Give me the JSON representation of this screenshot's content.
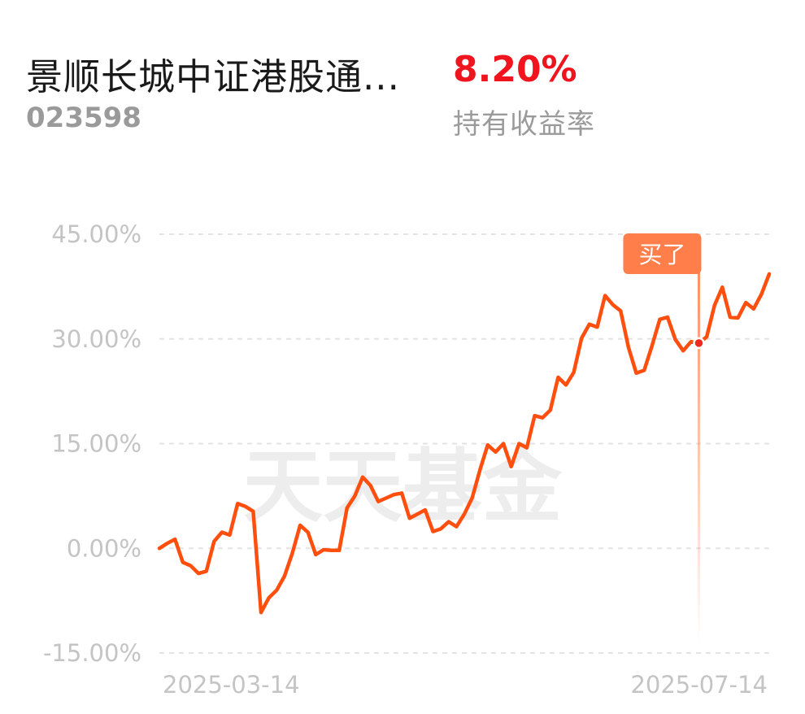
{
  "header": {
    "fund_name": "景顺长城中证港股通...",
    "fund_code": "023598",
    "return_value": "8.20%",
    "return_label": "持有收益率"
  },
  "watermark": "天天基金",
  "colors": {
    "line": "#ff4e0d",
    "marker": "#ff7e4a",
    "return_positive": "#f0141e"
  },
  "chart_data": {
    "type": "line",
    "yticks": [
      "45.00%",
      "30.00%",
      "15.00%",
      "0.00%",
      "-15.00%"
    ],
    "ytick_values": [
      45,
      30,
      15,
      0,
      -15
    ],
    "ylim": [
      -15,
      45
    ],
    "xtick_labels": [
      "2025-03-14",
      "2025-07-14"
    ],
    "x_range": [
      "2025-03-14",
      "2025-07-14"
    ],
    "grid": true,
    "buy_marker": {
      "label": "买了",
      "index": 69
    },
    "series": [
      {
        "values": [
          0.0,
          0.7,
          1.3,
          -2.0,
          -2.5,
          -3.6,
          -3.3,
          1.0,
          2.3,
          1.9,
          6.4,
          6.0,
          5.3,
          -9.2,
          -7.1,
          -6.0,
          -4.0,
          -0.7,
          3.3,
          2.3,
          -0.9,
          -0.2,
          -0.3,
          -0.3,
          5.8,
          7.5,
          10.2,
          9.0,
          6.7,
          7.2,
          7.7,
          7.9,
          4.3,
          4.9,
          5.5,
          2.4,
          2.8,
          3.8,
          3.1,
          4.9,
          7.2,
          11.2,
          14.8,
          13.8,
          15.0,
          11.7,
          15.0,
          14.4,
          19.0,
          18.7,
          19.8,
          24.5,
          23.4,
          25.2,
          30.1,
          32.1,
          31.7,
          36.2,
          34.9,
          34.0,
          28.8,
          25.1,
          25.5,
          29.0,
          32.8,
          33.1,
          29.9,
          28.3,
          29.6,
          29.4,
          30.3,
          34.8,
          37.4,
          33.1,
          33.0,
          35.2,
          34.3,
          36.4,
          39.3
        ]
      }
    ]
  }
}
